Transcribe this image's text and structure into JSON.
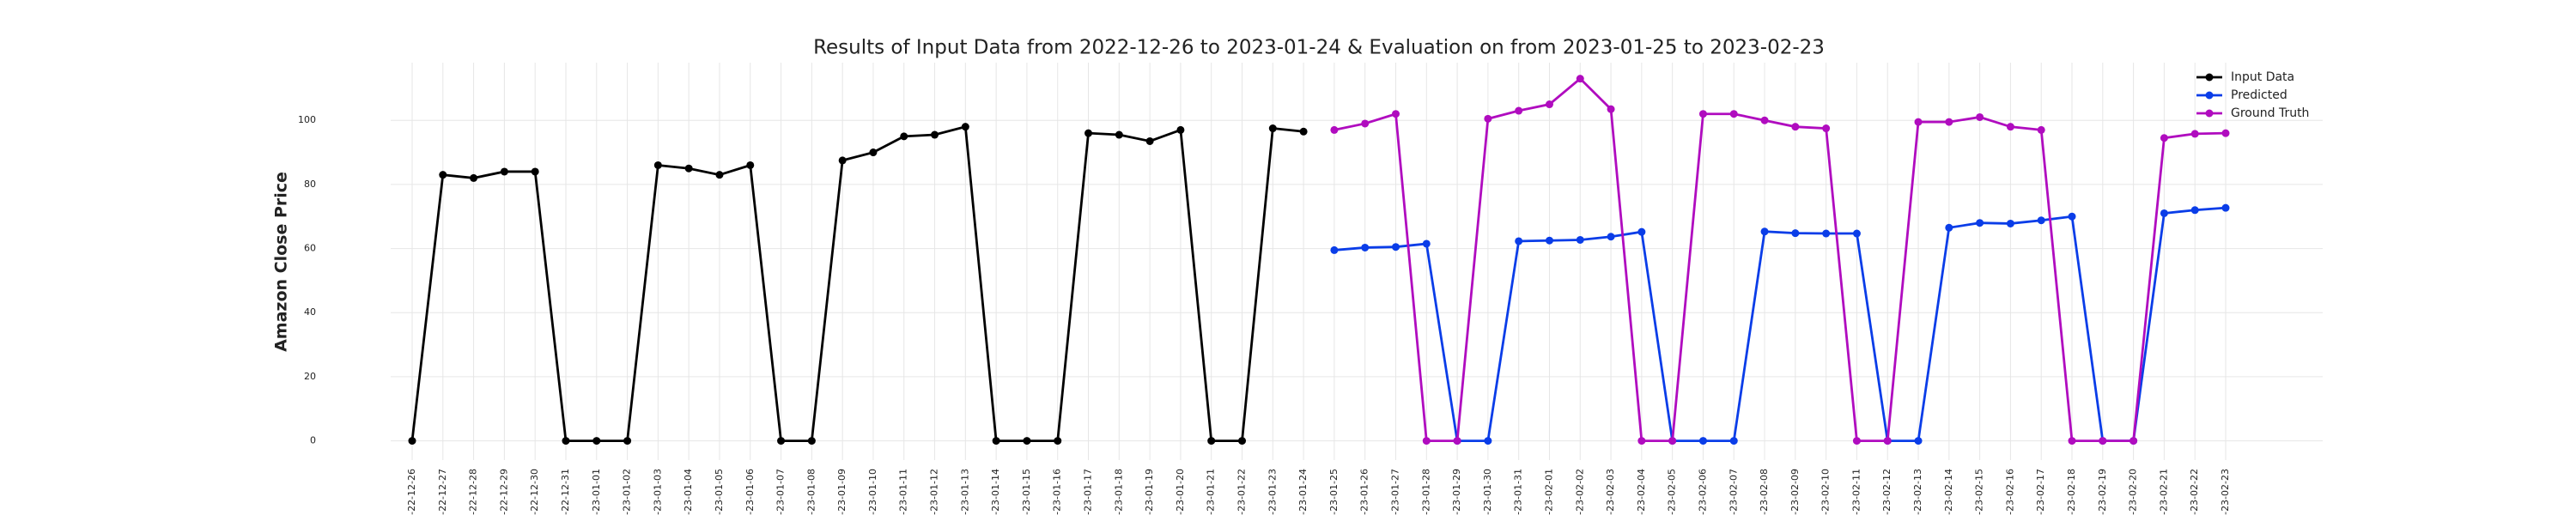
{
  "chart_data": {
    "type": "line",
    "title": "Results of Input Data from 2022-12-26 to 2023-01-24 & Evaluation on from 2023-01-25 to 2023-02-23",
    "y_label": "Amazon Close Price",
    "categories": [
      "-22-12-26",
      "-22-12-27",
      "-22-12-28",
      "-22-12-29",
      "-22-12-30",
      "-22-12-31",
      "-23-01-01",
      "-23-01-02",
      "-23-01-03",
      "-23-01-04",
      "-23-01-05",
      "-23-01-06",
      "-23-01-07",
      "-23-01-08",
      "-23-01-09",
      "-23-01-10",
      "-23-01-11",
      "-23-01-12",
      "-23-01-13",
      "-23-01-14",
      "-23-01-15",
      "-23-01-16",
      "-23-01-17",
      "-23-01-18",
      "-23-01-19",
      "-23-01-20",
      "-23-01-21",
      "-23-01-22",
      "-23-01-23",
      "-23-01-24",
      "-23-01-25",
      "-23-01-26",
      "-23-01-27",
      "-23-01-28",
      "-23-01-29",
      "-23-01-30",
      "-23-01-31",
      "-23-02-01",
      "-23-02-02",
      "-23-02-03",
      "-23-02-04",
      "-23-02-05",
      "-23-02-06",
      "-23-02-07",
      "-23-02-08",
      "-23-02-09",
      "-23-02-10",
      "-23-02-11",
      "-23-02-12",
      "-23-02-13",
      "-23-02-14",
      "-23-02-15",
      "-23-02-16",
      "-23-02-17",
      "-23-02-18",
      "-23-02-19",
      "-23-02-20",
      "-23-02-21",
      "-23-02-22",
      "-23-02-23"
    ],
    "series": [
      {
        "name": "Input Data",
        "color": "#000000",
        "values": [
          0,
          83,
          82,
          84,
          84,
          0,
          0,
          0,
          86,
          85,
          83,
          86,
          0,
          0,
          87.5,
          90,
          95,
          95.5,
          98,
          0,
          0,
          0,
          96,
          95.5,
          93.5,
          97,
          0,
          0,
          97.5,
          96.5,
          null,
          null,
          null,
          null,
          null,
          null,
          null,
          null,
          null,
          null,
          null,
          null,
          null,
          null,
          null,
          null,
          null,
          null,
          null,
          null,
          null,
          null,
          null,
          null,
          null,
          null,
          null,
          null,
          null,
          null
        ]
      },
      {
        "name": "Predicted",
        "color": "#0a3de8",
        "values": [
          null,
          null,
          null,
          null,
          null,
          null,
          null,
          null,
          null,
          null,
          null,
          null,
          null,
          null,
          null,
          null,
          null,
          null,
          null,
          null,
          null,
          null,
          null,
          null,
          null,
          null,
          null,
          null,
          null,
          null,
          59.5,
          60.3,
          60.5,
          61.5,
          0,
          0,
          62.3,
          62.5,
          62.7,
          63.7,
          65.2,
          0,
          0,
          0,
          65.3,
          64.8,
          64.7,
          64.7,
          0,
          0,
          66.5,
          68,
          67.8,
          68.8,
          70,
          0,
          0,
          71,
          72,
          72.7
        ]
      },
      {
        "name": "Ground Truth",
        "color": "#b00cbf",
        "values": [
          null,
          null,
          null,
          null,
          null,
          null,
          null,
          null,
          null,
          null,
          null,
          null,
          null,
          null,
          null,
          null,
          null,
          null,
          null,
          null,
          null,
          null,
          null,
          null,
          null,
          null,
          null,
          null,
          null,
          null,
          97,
          99,
          102,
          0,
          0,
          100.5,
          103,
          105,
          113,
          103.5,
          0,
          0,
          102,
          102,
          100,
          98,
          97.5,
          0,
          0,
          99.5,
          99.5,
          101,
          98,
          97,
          0,
          0,
          0,
          94.5,
          95.8,
          96
        ]
      }
    ],
    "ylim": [
      -6,
      118
    ],
    "yticks": [
      0,
      20,
      40,
      60,
      80,
      100
    ],
    "grid": true,
    "legend": "upper right"
  }
}
